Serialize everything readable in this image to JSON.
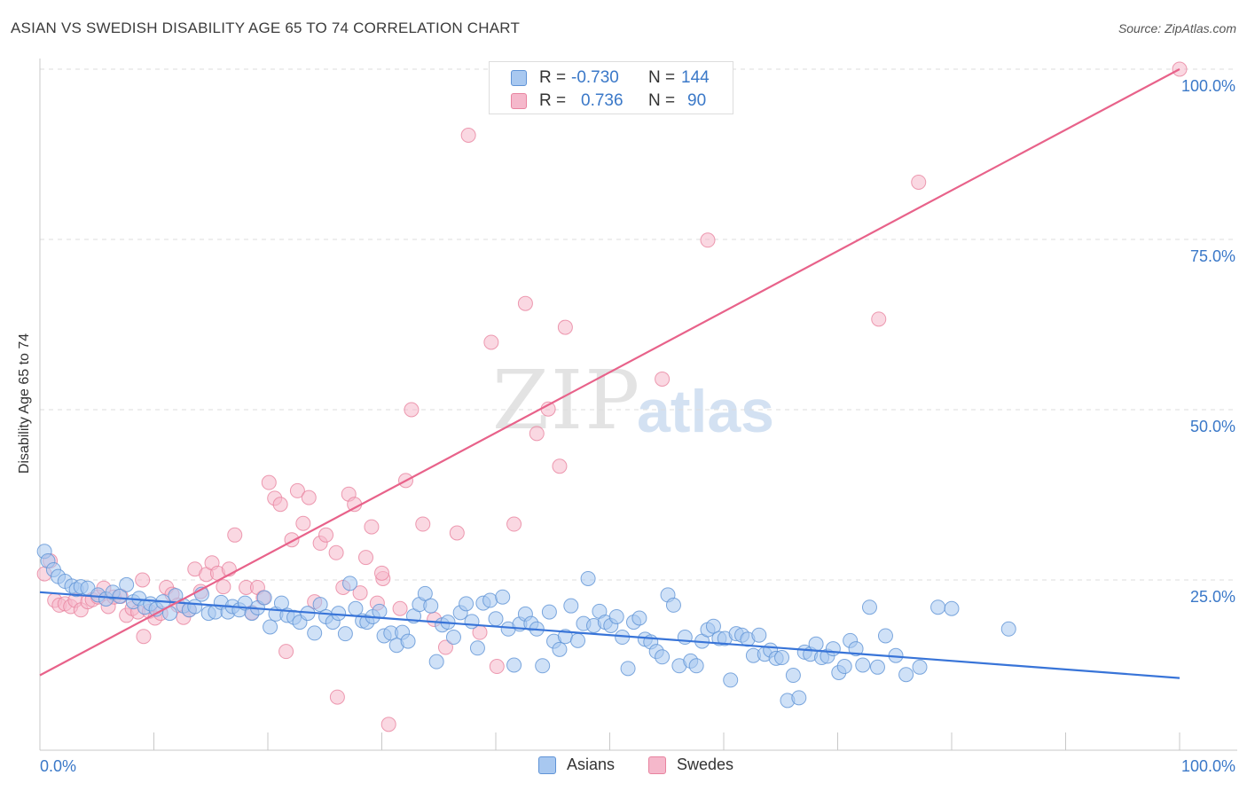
{
  "header": {
    "title": "ASIAN VS SWEDISH DISABILITY AGE 65 TO 74 CORRELATION CHART",
    "source": "Source: ZipAtlas.com"
  },
  "watermark": {
    "zip": "ZIP",
    "atlas": "atlas"
  },
  "legend": {
    "rows": [
      {
        "r_label": "R =",
        "r_value": "-0.730",
        "n_label": "N =",
        "n_value": "144",
        "color": "#a8c8f0"
      },
      {
        "r_label": "R =",
        "r_value": "0.736",
        "n_label": "N =",
        "n_value": "90",
        "color": "#f5b8cb"
      }
    ]
  },
  "bottom_legend": {
    "asians": "Asians",
    "swedes": "Swedes"
  },
  "colors": {
    "asians_fill": "#a8c8f0",
    "asians_stroke": "#5f93d6",
    "asians_line": "#3874d8",
    "swedes_fill": "#f5b8cb",
    "swedes_stroke": "#e8839f",
    "swedes_line": "#e8628a",
    "axis_text": "#3a78c8",
    "grid": "#dcdcdc"
  },
  "chart_data": {
    "type": "scatter",
    "title": "ASIAN VS SWEDISH DISABILITY AGE 65 TO 74 CORRELATION CHART",
    "xlabel": "",
    "ylabel": "Disability Age 65 to 74",
    "xlim": [
      0,
      100
    ],
    "ylim": [
      0,
      100
    ],
    "x_tick_labels": [
      "0.0%",
      "100.0%"
    ],
    "y_tick_labels": [
      "25.0%",
      "50.0%",
      "75.0%",
      "100.0%"
    ],
    "y_ticks": [
      25,
      50,
      75,
      100
    ],
    "grid": true,
    "legend_position": "top-center",
    "series": [
      {
        "name": "Asians",
        "stats": {
          "R": -0.73,
          "N": 144
        },
        "trend": {
          "x": [
            0,
            100
          ],
          "y": [
            23.2,
            10.6
          ]
        },
        "points": [
          [
            0.4,
            29.2
          ],
          [
            0.7,
            27.8
          ],
          [
            1.2,
            26.5
          ],
          [
            1.6,
            25.5
          ],
          [
            2.2,
            24.8
          ],
          [
            2.8,
            24.1
          ],
          [
            3.2,
            23.6
          ],
          [
            3.6,
            24.0
          ],
          [
            4.2,
            23.8
          ],
          [
            5.1,
            22.8
          ],
          [
            5.8,
            22.2
          ],
          [
            6.4,
            23.2
          ],
          [
            7.0,
            22.6
          ],
          [
            7.6,
            24.3
          ],
          [
            8.2,
            21.8
          ],
          [
            8.7,
            22.3
          ],
          [
            9.2,
            21.0
          ],
          [
            9.7,
            21.5
          ],
          [
            10.2,
            20.7
          ],
          [
            10.8,
            21.8
          ],
          [
            11.4,
            20.1
          ],
          [
            11.9,
            22.7
          ],
          [
            12.6,
            21.2
          ],
          [
            13.1,
            20.6
          ],
          [
            13.6,
            21.1
          ],
          [
            14.2,
            22.9
          ],
          [
            14.8,
            20.1
          ],
          [
            15.4,
            20.3
          ],
          [
            15.9,
            21.7
          ],
          [
            16.5,
            20.3
          ],
          [
            16.9,
            21.1
          ],
          [
            17.5,
            20.6
          ],
          [
            18.0,
            21.6
          ],
          [
            18.6,
            20.1
          ],
          [
            19.1,
            20.9
          ],
          [
            19.7,
            22.4
          ],
          [
            20.2,
            18.1
          ],
          [
            20.7,
            20.0
          ],
          [
            21.2,
            21.6
          ],
          [
            21.7,
            19.8
          ],
          [
            22.3,
            19.5
          ],
          [
            22.8,
            18.8
          ],
          [
            23.5,
            20.1
          ],
          [
            24.1,
            17.2
          ],
          [
            24.6,
            21.4
          ],
          [
            25.1,
            19.6
          ],
          [
            25.7,
            18.8
          ],
          [
            26.2,
            20.1
          ],
          [
            26.8,
            17.1
          ],
          [
            27.2,
            24.5
          ],
          [
            27.7,
            20.8
          ],
          [
            28.3,
            19.0
          ],
          [
            28.7,
            18.8
          ],
          [
            29.2,
            19.6
          ],
          [
            29.8,
            20.4
          ],
          [
            30.2,
            16.8
          ],
          [
            30.8,
            17.2
          ],
          [
            31.3,
            15.4
          ],
          [
            31.8,
            17.3
          ],
          [
            32.3,
            16.0
          ],
          [
            32.8,
            19.7
          ],
          [
            33.3,
            21.4
          ],
          [
            33.8,
            23.0
          ],
          [
            34.3,
            21.2
          ],
          [
            34.8,
            13.0
          ],
          [
            35.3,
            18.4
          ],
          [
            35.8,
            18.8
          ],
          [
            36.3,
            16.6
          ],
          [
            36.9,
            20.2
          ],
          [
            37.4,
            21.5
          ],
          [
            37.9,
            18.9
          ],
          [
            38.4,
            15.0
          ],
          [
            38.9,
            21.6
          ],
          [
            39.5,
            22.0
          ],
          [
            40.0,
            19.3
          ],
          [
            40.6,
            22.5
          ],
          [
            41.1,
            17.8
          ],
          [
            41.6,
            12.5
          ],
          [
            42.1,
            18.5
          ],
          [
            42.6,
            20.0
          ],
          [
            43.1,
            18.6
          ],
          [
            43.6,
            17.8
          ],
          [
            44.1,
            12.4
          ],
          [
            44.7,
            20.3
          ],
          [
            45.1,
            16.0
          ],
          [
            45.6,
            14.8
          ],
          [
            46.1,
            16.7
          ],
          [
            46.6,
            21.2
          ],
          [
            47.2,
            16.1
          ],
          [
            47.7,
            18.6
          ],
          [
            48.1,
            25.2
          ],
          [
            48.6,
            18.3
          ],
          [
            49.1,
            20.4
          ],
          [
            49.6,
            18.8
          ],
          [
            50.1,
            18.3
          ],
          [
            50.6,
            19.6
          ],
          [
            51.1,
            16.6
          ],
          [
            51.6,
            12.0
          ],
          [
            52.1,
            18.8
          ],
          [
            52.6,
            19.4
          ],
          [
            53.1,
            16.3
          ],
          [
            53.6,
            15.9
          ],
          [
            54.1,
            14.5
          ],
          [
            54.6,
            13.7
          ],
          [
            55.1,
            22.8
          ],
          [
            55.6,
            21.3
          ],
          [
            56.1,
            12.4
          ],
          [
            56.6,
            16.6
          ],
          [
            57.1,
            13.1
          ],
          [
            57.6,
            12.4
          ],
          [
            58.1,
            16.0
          ],
          [
            58.6,
            17.7
          ],
          [
            59.1,
            18.2
          ],
          [
            59.6,
            16.4
          ],
          [
            60.1,
            16.4
          ],
          [
            60.6,
            10.3
          ],
          [
            61.1,
            17.1
          ],
          [
            61.6,
            16.9
          ],
          [
            62.1,
            16.3
          ],
          [
            62.6,
            13.9
          ],
          [
            63.1,
            16.9
          ],
          [
            63.6,
            14.1
          ],
          [
            64.1,
            14.7
          ],
          [
            64.6,
            13.5
          ],
          [
            65.1,
            13.6
          ],
          [
            65.6,
            7.3
          ],
          [
            66.1,
            11.0
          ],
          [
            66.6,
            7.7
          ],
          [
            67.1,
            14.4
          ],
          [
            67.6,
            14.1
          ],
          [
            68.1,
            15.6
          ],
          [
            68.6,
            13.6
          ],
          [
            69.1,
            13.8
          ],
          [
            69.6,
            14.9
          ],
          [
            70.1,
            11.4
          ],
          [
            70.6,
            12.3
          ],
          [
            71.1,
            16.1
          ],
          [
            71.6,
            14.9
          ],
          [
            72.2,
            12.5
          ],
          [
            72.8,
            21.0
          ],
          [
            73.5,
            12.2
          ],
          [
            74.2,
            16.8
          ],
          [
            75.1,
            13.9
          ],
          [
            76.0,
            11.1
          ],
          [
            77.2,
            12.2
          ],
          [
            78.8,
            21.0
          ],
          [
            80.0,
            20.8
          ],
          [
            85.0,
            17.8
          ]
        ]
      },
      {
        "name": "Swedes",
        "stats": {
          "R": 0.736,
          "N": 90
        },
        "trend": {
          "x": [
            0,
            100
          ],
          "y": [
            11.0,
            100.0
          ]
        },
        "points": [
          [
            0.4,
            25.9
          ],
          [
            0.9,
            27.8
          ],
          [
            1.3,
            22.0
          ],
          [
            1.7,
            21.3
          ],
          [
            2.2,
            21.5
          ],
          [
            2.7,
            21.1
          ],
          [
            3.1,
            22.0
          ],
          [
            3.6,
            20.6
          ],
          [
            4.2,
            21.8
          ],
          [
            4.6,
            22.1
          ],
          [
            5.1,
            22.5
          ],
          [
            5.6,
            23.8
          ],
          [
            6.0,
            21.1
          ],
          [
            6.5,
            22.5
          ],
          [
            7.1,
            22.6
          ],
          [
            7.6,
            19.8
          ],
          [
            8.1,
            20.8
          ],
          [
            8.6,
            20.3
          ],
          [
            9.1,
            16.7
          ],
          [
            9.6,
            20.4
          ],
          [
            10.1,
            19.4
          ],
          [
            10.6,
            20.1
          ],
          [
            11.1,
            23.9
          ],
          [
            11.6,
            22.9
          ],
          [
            12.1,
            21.3
          ],
          [
            12.6,
            19.5
          ],
          [
            13.1,
            20.6
          ],
          [
            13.6,
            26.6
          ],
          [
            14.1,
            23.3
          ],
          [
            14.6,
            25.8
          ],
          [
            15.1,
            27.5
          ],
          [
            15.6,
            26.0
          ],
          [
            16.1,
            24.0
          ],
          [
            16.6,
            26.6
          ],
          [
            17.1,
            31.6
          ],
          [
            18.1,
            23.9
          ],
          [
            18.6,
            20.2
          ],
          [
            19.1,
            23.9
          ],
          [
            19.6,
            22.4
          ],
          [
            20.1,
            39.3
          ],
          [
            20.6,
            37.0
          ],
          [
            21.1,
            36.1
          ],
          [
            21.6,
            14.5
          ],
          [
            22.1,
            30.9
          ],
          [
            22.6,
            38.1
          ],
          [
            23.1,
            33.3
          ],
          [
            23.6,
            37.1
          ],
          [
            24.1,
            21.8
          ],
          [
            24.6,
            30.4
          ],
          [
            25.1,
            31.6
          ],
          [
            26.1,
            7.8
          ],
          [
            26.6,
            23.9
          ],
          [
            27.1,
            37.6
          ],
          [
            27.6,
            36.1
          ],
          [
            28.1,
            23.1
          ],
          [
            28.6,
            28.3
          ],
          [
            29.1,
            32.8
          ],
          [
            29.6,
            21.6
          ],
          [
            30.1,
            25.2
          ],
          [
            30.6,
            3.8
          ],
          [
            31.6,
            20.8
          ],
          [
            32.1,
            39.6
          ],
          [
            32.6,
            50.0
          ],
          [
            33.6,
            33.2
          ],
          [
            34.6,
            19.2
          ],
          [
            35.6,
            15.1
          ],
          [
            36.6,
            31.9
          ],
          [
            37.6,
            90.3
          ],
          [
            38.6,
            17.3
          ],
          [
            39.6,
            59.9
          ],
          [
            40.1,
            12.3
          ],
          [
            41.6,
            33.2
          ],
          [
            42.6,
            65.6
          ],
          [
            43.6,
            46.5
          ],
          [
            44.6,
            50.1
          ],
          [
            45.1,
            100.0
          ],
          [
            45.6,
            41.7
          ],
          [
            46.1,
            62.1
          ],
          [
            50.6,
            100.0
          ],
          [
            54.6,
            54.5
          ],
          [
            54.9,
            100.0
          ],
          [
            58.6,
            74.9
          ],
          [
            73.6,
            63.3
          ],
          [
            77.1,
            83.4
          ],
          [
            100.0,
            100.0
          ],
          [
            43.2,
            100.0
          ],
          [
            52.0,
            96.0
          ],
          [
            30.0,
            26.0
          ],
          [
            26.0,
            29.0
          ],
          [
            9.0,
            25.0
          ]
        ]
      }
    ]
  }
}
